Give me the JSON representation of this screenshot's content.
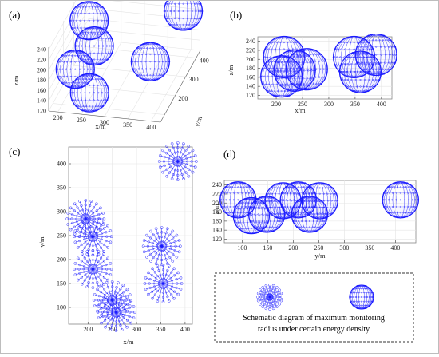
{
  "colors": {
    "sphere": "#1a1aff",
    "axis": "#555555",
    "grid": "#e4e4e4",
    "frame": "#888888"
  },
  "panels": [
    {
      "label": "(a)"
    },
    {
      "label": "(b)"
    },
    {
      "label": "(c)"
    },
    {
      "label": "(d)"
    }
  ],
  "legend": {
    "text_line1": "Schematic diagram of maximum monitoring",
    "text_line2": "radius under certain energy density",
    "top_view_icon": "sphere-top-view-icon",
    "side_view_icon": "sphere-side-view-icon"
  },
  "chart_data": [
    {
      "panel": "(a)",
      "type": "scatter",
      "view": "3d",
      "xlabel": "x/m",
      "ylabel": "y/m",
      "zlabel": "z/m",
      "x_ticks": [
        "200",
        "250",
        "300",
        "350",
        "400"
      ],
      "y_ticks": [
        "200",
        "300",
        "400"
      ],
      "z_ticks": [
        "120",
        "140",
        "160",
        "180",
        "200",
        "220",
        "240"
      ],
      "spheres": [
        {
          "x": 215,
          "y": 290,
          "z": 215
        },
        {
          "x": 235,
          "y": 250,
          "z": 182
        },
        {
          "x": 210,
          "y": 180,
          "z": 160
        },
        {
          "x": 260,
          "y": 95,
          "z": 150
        },
        {
          "x": 360,
          "y": 230,
          "z": 170
        },
        {
          "x": 390,
          "y": 410,
          "z": 205
        }
      ]
    },
    {
      "panel": "(b)",
      "type": "scatter",
      "view": "front",
      "xlabel": "x/m",
      "ylabel": "z/m",
      "x_ticks": [
        "200",
        "250",
        "300",
        "350",
        "400"
      ],
      "y_ticks": [
        "120",
        "140",
        "160",
        "180",
        "200",
        "220",
        "240"
      ],
      "xlim": [
        165,
        420
      ],
      "ylim": [
        112,
        250
      ],
      "spheres": [
        {
          "x": 215,
          "z": 205
        },
        {
          "x": 235,
          "z": 175
        },
        {
          "x": 210,
          "z": 162
        },
        {
          "x": 258,
          "z": 178
        },
        {
          "x": 348,
          "z": 205
        },
        {
          "x": 360,
          "z": 172
        },
        {
          "x": 390,
          "z": 210
        }
      ]
    },
    {
      "panel": "(c)",
      "type": "scatter",
      "view": "top",
      "xlabel": "x/m",
      "ylabel": "y/m",
      "x_ticks": [
        "200",
        "250",
        "300",
        "350",
        "400"
      ],
      "y_ticks": [
        "100",
        "150",
        "200",
        "250",
        "300",
        "350",
        "400"
      ],
      "xlim": [
        160,
        415
      ],
      "ylim": [
        65,
        435
      ],
      "spheres": [
        {
          "x": 195,
          "y": 285
        },
        {
          "x": 210,
          "y": 248
        },
        {
          "x": 210,
          "y": 180
        },
        {
          "x": 250,
          "y": 115
        },
        {
          "x": 258,
          "y": 90
        },
        {
          "x": 352,
          "y": 228
        },
        {
          "x": 355,
          "y": 150
        },
        {
          "x": 385,
          "y": 405
        }
      ]
    },
    {
      "panel": "(d)",
      "type": "scatter",
      "view": "side",
      "xlabel": "y/m",
      "ylabel": "z/m",
      "x_ticks": [
        "100",
        "150",
        "200",
        "250",
        "300",
        "350",
        "400"
      ],
      "y_ticks": [
        "120",
        "140",
        "160",
        "180",
        "200",
        "220",
        "240"
      ],
      "xlim": [
        65,
        440
      ],
      "ylim": [
        112,
        250
      ],
      "spheres": [
        {
          "x": 92,
          "z": 207
        },
        {
          "x": 118,
          "z": 172
        },
        {
          "x": 148,
          "z": 175
        },
        {
          "x": 180,
          "z": 205
        },
        {
          "x": 210,
          "z": 207
        },
        {
          "x": 232,
          "z": 175
        },
        {
          "x": 252,
          "z": 205
        },
        {
          "x": 410,
          "z": 207
        }
      ]
    }
  ]
}
